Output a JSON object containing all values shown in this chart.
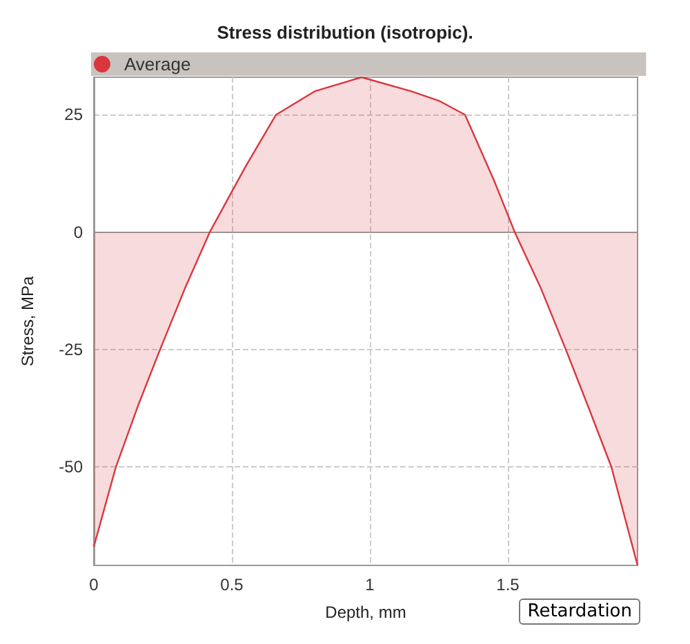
{
  "chart_data": {
    "type": "area",
    "title": "Stress distribution (isotropic).",
    "xlabel": "Depth, mm",
    "ylabel": "Stress, MPa",
    "annotations": [
      "Retardation"
    ],
    "x": [
      0,
      0.08,
      0.16,
      0.24,
      0.33,
      0.42,
      0.55,
      0.66,
      0.8,
      0.97,
      1.15,
      1.25,
      1.345,
      1.45,
      1.525,
      1.62,
      1.71,
      1.79,
      1.875,
      1.97
    ],
    "series": [
      {
        "name": "Average",
        "color": "#d9363e",
        "values": [
          -67,
          -50,
          -37,
          -25,
          -12,
          0,
          14,
          25,
          30,
          33,
          30,
          28,
          25,
          11,
          0,
          -12,
          -25,
          -37,
          -50,
          -71
        ]
      }
    ],
    "xlim": [
      0,
      1.97
    ],
    "xticks": [
      0,
      0.5,
      1,
      1.5
    ],
    "ylim": [
      -71,
      33
    ],
    "yticks": [
      -50,
      -25,
      0,
      25
    ],
    "grid": true,
    "legend": "top left",
    "marker": "none",
    "line_style": "solid"
  }
}
